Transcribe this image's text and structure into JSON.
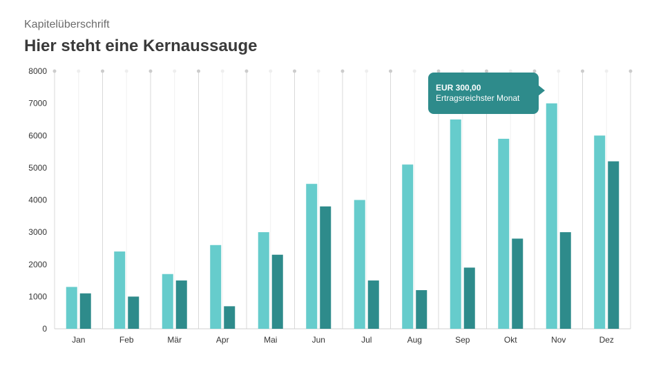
{
  "header": {
    "chapter": "Kapitelüberschrift",
    "headline": "Hier steht eine Kernaussauge"
  },
  "callout": {
    "value": "EUR 300,00",
    "label": "Ertragsreichster Monat"
  },
  "colors": {
    "series_light": "#66cccc",
    "series_dark": "#2e8b8b",
    "callout_bg": "#2e8b8b",
    "grid": "#d9d9d9"
  },
  "chart_data": {
    "type": "bar",
    "categories": [
      "Jan",
      "Feb",
      "Mär",
      "Apr",
      "Mai",
      "Jun",
      "Jul",
      "Aug",
      "Sep",
      "Okt",
      "Nov",
      "Dez"
    ],
    "series": [
      {
        "values": [
          1300,
          2400,
          1700,
          2600,
          3000,
          4500,
          4000,
          5100,
          6500,
          5900,
          7000,
          6000
        ]
      },
      {
        "values": [
          1100,
          1000,
          1500,
          700,
          2300,
          3800,
          1500,
          1200,
          1900,
          2800,
          3000,
          5200
        ]
      }
    ],
    "yticks": [
      0,
      1000,
      2000,
      3000,
      4000,
      5000,
      6000,
      7000,
      8000
    ],
    "ylim": [
      0,
      8000
    ],
    "grid": true,
    "legend": false
  }
}
